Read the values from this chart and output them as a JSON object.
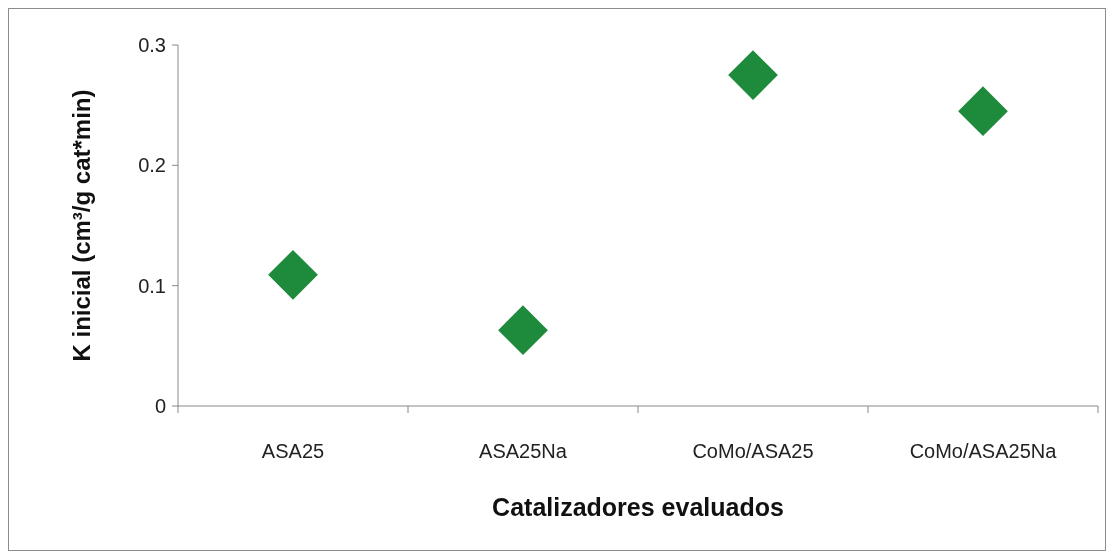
{
  "chart_data": {
    "type": "scatter",
    "categories": [
      "ASA25",
      "ASA25Na",
      "CoMo/ASA25",
      "CoMo/ASA25Na"
    ],
    "series": [
      {
        "color": "#1e8a3c",
        "values": [
          0.109,
          0.063,
          0.275,
          0.245
        ]
      }
    ],
    "xlabel": "Catalizadores evaluados",
    "ylabel": "K inicial (cm³/g cat*min)",
    "ylim": [
      0,
      0.3
    ],
    "yticks": [
      0,
      0.1,
      0.2,
      0.3
    ],
    "grid": false,
    "marker": "diamond"
  }
}
